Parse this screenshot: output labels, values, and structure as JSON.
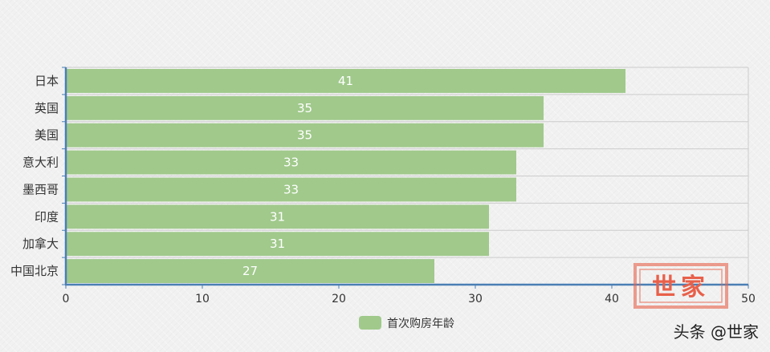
{
  "chart_data": {
    "type": "bar",
    "orientation": "horizontal",
    "categories": [
      "日本",
      "英国",
      "美国",
      "意大利",
      "墨西哥",
      "印度",
      "加拿大",
      "中国北京"
    ],
    "series": [
      {
        "name": "首次购房年龄",
        "values": [
          41,
          35,
          35,
          33,
          33,
          31,
          31,
          27
        ]
      }
    ],
    "xlim": [
      0,
      50
    ],
    "xticks": [
      0,
      10,
      20,
      30,
      40,
      50
    ],
    "grid": true,
    "legend_position": "bottom",
    "data_labels": true
  },
  "colors": {
    "bar": "#a0c98b",
    "axis": "#4a7fb5",
    "grid": "#cccccc",
    "stamp": "#e8604a"
  },
  "stamp": {
    "text": "世家"
  },
  "watermark": {
    "text": "头条 @世家"
  }
}
